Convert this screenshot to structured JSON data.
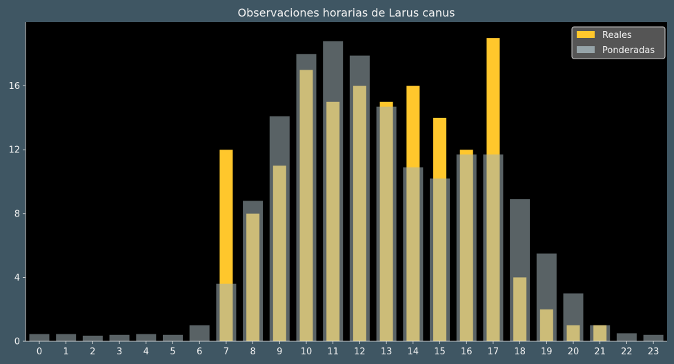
{
  "chart_data": {
    "type": "bar",
    "title": "Observaciones horarias de Larus canus",
    "xlabel": "",
    "ylabel": "",
    "categories": [
      "0",
      "1",
      "2",
      "3",
      "4",
      "5",
      "6",
      "7",
      "8",
      "9",
      "10",
      "11",
      "12",
      "13",
      "14",
      "15",
      "16",
      "17",
      "18",
      "19",
      "20",
      "21",
      "22",
      "23"
    ],
    "series": [
      {
        "name": "Reales",
        "color": "#ffc72c",
        "values": [
          0,
          0,
          0,
          0,
          0,
          0,
          0,
          12,
          8,
          11,
          17,
          15,
          16,
          15,
          16,
          14,
          12,
          19,
          4,
          2,
          1,
          1,
          0,
          0
        ]
      },
      {
        "name": "Ponderadas",
        "color": "#a2b3b8",
        "opacity": 0.55,
        "values": [
          0.45,
          0.45,
          0.35,
          0.4,
          0.45,
          0.4,
          1.0,
          3.6,
          8.8,
          14.1,
          18.0,
          18.8,
          17.9,
          14.7,
          10.9,
          10.2,
          11.7,
          11.7,
          8.9,
          5.5,
          3.0,
          1.0,
          0.5,
          0.4
        ]
      }
    ],
    "ylim": [
      0,
      20
    ],
    "yticks": [
      0,
      4,
      8,
      12,
      16
    ],
    "grid": false,
    "legend_position": "top-right",
    "colors": {
      "figure_background": "#3f5663",
      "plot_background": "#000000",
      "text": "#f2f2f2",
      "legend_background": "#555555"
    }
  }
}
